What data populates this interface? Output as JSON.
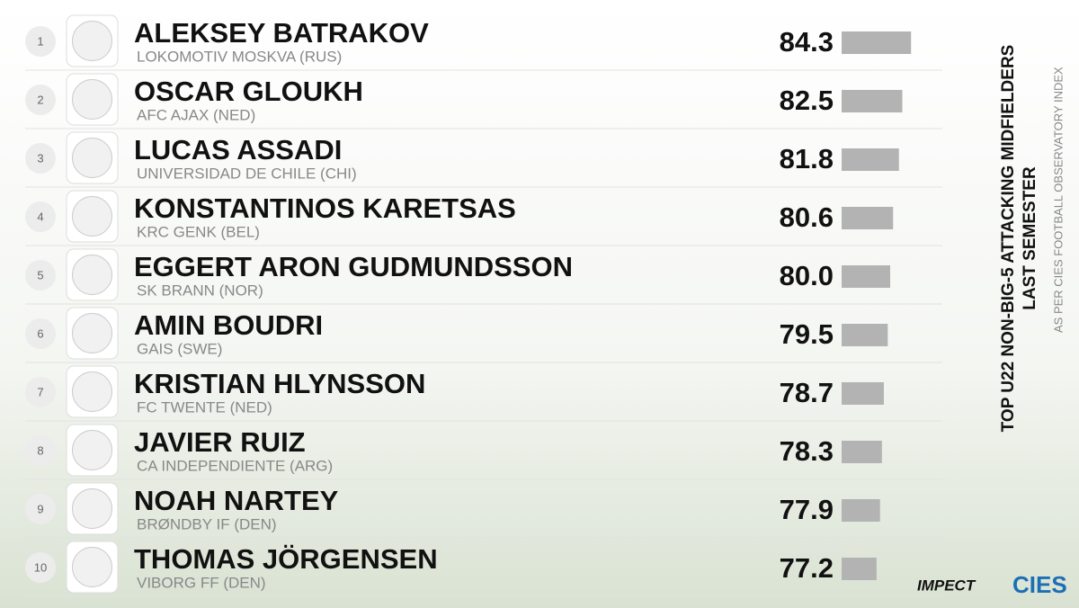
{
  "chart_data": {
    "type": "bar",
    "title": "TOP U22 NON-BIG-5 ATTACKING MIDFIELDERS",
    "subtitle": "LAST SEMESTER",
    "note": "AS PER CIES FOOTBALL OBSERVATORY INDEX",
    "brands": [
      "IMPECT",
      "CIES"
    ],
    "ranks": [
      1,
      2,
      3,
      4,
      5,
      6,
      7,
      8,
      9,
      10
    ],
    "categories": [
      "ALEKSEY BATRAKOV",
      "OSCAR GLOUKH",
      "LUCAS ASSADI",
      "KONSTANTINOS KARETSAS",
      "EGGERT ARON GUDMUNDSSON",
      "AMIN BOUDRI",
      "KRISTIAN HLYNSSON",
      "JAVIER RUIZ",
      "NOAH NARTEY",
      "THOMAS JÖRGENSEN"
    ],
    "clubs": [
      "LOKOMOTIV MOSKVA (RUS)",
      "AFC AJAX (NED)",
      "UNIVERSIDAD DE CHILE (CHI)",
      "KRC GENK (BEL)",
      "SK BRANN (NOR)",
      "GAIS (SWE)",
      "FC TWENTE (NED)",
      "CA INDEPENDIENTE (ARG)",
      "BRØNDBY IF (DEN)",
      "VIBORG FF (DEN)"
    ],
    "values": [
      84.3,
      82.5,
      81.8,
      80.6,
      80.0,
      79.5,
      78.7,
      78.3,
      77.9,
      77.2
    ],
    "value_labels": [
      "84.3",
      "82.5",
      "81.8",
      "80.6",
      "80.0",
      "79.5",
      "78.7",
      "78.3",
      "77.9",
      "77.2"
    ],
    "xlim": [
      70,
      85
    ],
    "color": "#b3b3b3"
  }
}
